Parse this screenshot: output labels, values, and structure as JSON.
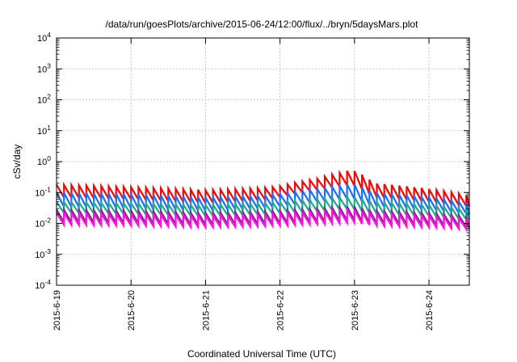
{
  "chart_data": {
    "type": "line",
    "title": "/data/run/goesPlots/archive/2015-06-24/12:00/flux/../bryn/5daysMars.plot",
    "xlabel": "Coordinated Universal Time (UTC)",
    "ylabel": "cSv/day",
    "y_scale": "log",
    "ylim": [
      0.0001,
      10000
    ],
    "y_ticks": [
      {
        "base": "10",
        "exp": "-4"
      },
      {
        "base": "10",
        "exp": "-3"
      },
      {
        "base": "10",
        "exp": "-2"
      },
      {
        "base": "10",
        "exp": "-1"
      },
      {
        "base": "10",
        "exp": "0"
      },
      {
        "base": "10",
        "exp": "1"
      },
      {
        "base": "10",
        "exp": "2"
      },
      {
        "base": "10",
        "exp": "3"
      },
      {
        "base": "10",
        "exp": "4"
      }
    ],
    "x_start": "2015-06-19",
    "x_end": "2015-06-24T13:00",
    "x_ticks": [
      "2015-6-19",
      "2015-6-20",
      "2015-6-21",
      "2015-6-22",
      "2015-6-23",
      "2015-6-24"
    ],
    "grid": true,
    "legend": "none",
    "sawtooth_period_hours": 2.4,
    "series": [
      {
        "color": "#ff0000",
        "x": [
          "2015-06-19T00:00",
          "2015-06-20T00:00",
          "2015-06-21T00:00",
          "2015-06-21T18:00",
          "2015-06-22T00:00",
          "2015-06-22T12:00",
          "2015-06-22T20:00",
          "2015-06-22T23:00",
          "2015-06-23T06:00",
          "2015-06-24T00:00",
          "2015-06-24T13:00"
        ],
        "peak": [
          0.18,
          0.15,
          0.12,
          0.14,
          0.16,
          0.28,
          0.45,
          0.55,
          0.2,
          0.13,
          0.08
        ],
        "trough": [
          0.07,
          0.06,
          0.045,
          0.055,
          0.07,
          0.12,
          0.16,
          0.18,
          0.07,
          0.05,
          0.035
        ]
      },
      {
        "color": "#1a6eff",
        "x": [
          "2015-06-19T00:00",
          "2015-06-20T00:00",
          "2015-06-21T00:00",
          "2015-06-21T18:00",
          "2015-06-22T00:00",
          "2015-06-22T12:00",
          "2015-06-22T20:00",
          "2015-06-22T23:00",
          "2015-06-23T06:00",
          "2015-06-24T00:00",
          "2015-06-24T13:00"
        ],
        "peak": [
          0.1,
          0.09,
          0.07,
          0.08,
          0.09,
          0.13,
          0.17,
          0.2,
          0.1,
          0.07,
          0.045
        ],
        "trough": [
          0.035,
          0.03,
          0.025,
          0.03,
          0.035,
          0.05,
          0.06,
          0.065,
          0.035,
          0.027,
          0.02
        ]
      },
      {
        "color": "#20a98f",
        "x": [
          "2015-06-19T00:00",
          "2015-06-20T00:00",
          "2015-06-21T00:00",
          "2015-06-21T18:00",
          "2015-06-22T00:00",
          "2015-06-22T12:00",
          "2015-06-22T20:00",
          "2015-06-22T23:00",
          "2015-06-23T06:00",
          "2015-06-24T00:00",
          "2015-06-24T13:00"
        ],
        "peak": [
          0.05,
          0.045,
          0.04,
          0.045,
          0.05,
          0.06,
          0.07,
          0.075,
          0.05,
          0.04,
          0.028
        ],
        "trough": [
          0.022,
          0.02,
          0.017,
          0.019,
          0.021,
          0.024,
          0.028,
          0.03,
          0.02,
          0.017,
          0.013
        ]
      },
      {
        "color": "#7b2a8a",
        "x": [
          "2015-06-19T00:00",
          "2015-06-20T00:00",
          "2015-06-21T00:00",
          "2015-06-21T18:00",
          "2015-06-22T00:00",
          "2015-06-22T12:00",
          "2015-06-22T20:00",
          "2015-06-22T23:00",
          "2015-06-23T06:00",
          "2015-06-24T00:00",
          "2015-06-24T13:00"
        ],
        "peak": [
          0.028,
          0.026,
          0.022,
          0.024,
          0.026,
          0.03,
          0.034,
          0.036,
          0.026,
          0.022,
          0.017
        ],
        "trough": [
          0.011,
          0.01,
          0.009,
          0.0095,
          0.01,
          0.011,
          0.012,
          0.013,
          0.01,
          0.009,
          0.0075
        ]
      },
      {
        "color": "#ff10e0",
        "x": [
          "2015-06-19T00:00",
          "2015-06-20T00:00",
          "2015-06-21T00:00",
          "2015-06-21T18:00",
          "2015-06-22T00:00",
          "2015-06-22T12:00",
          "2015-06-22T20:00",
          "2015-06-22T23:00",
          "2015-06-23T06:00",
          "2015-06-24T00:00",
          "2015-06-24T13:00"
        ],
        "peak": [
          0.022,
          0.02,
          0.018,
          0.019,
          0.021,
          0.024,
          0.027,
          0.028,
          0.021,
          0.018,
          0.014
        ],
        "trough": [
          0.009,
          0.0085,
          0.0075,
          0.008,
          0.0085,
          0.0095,
          0.01,
          0.011,
          0.0085,
          0.0075,
          0.0065
        ]
      }
    ]
  }
}
